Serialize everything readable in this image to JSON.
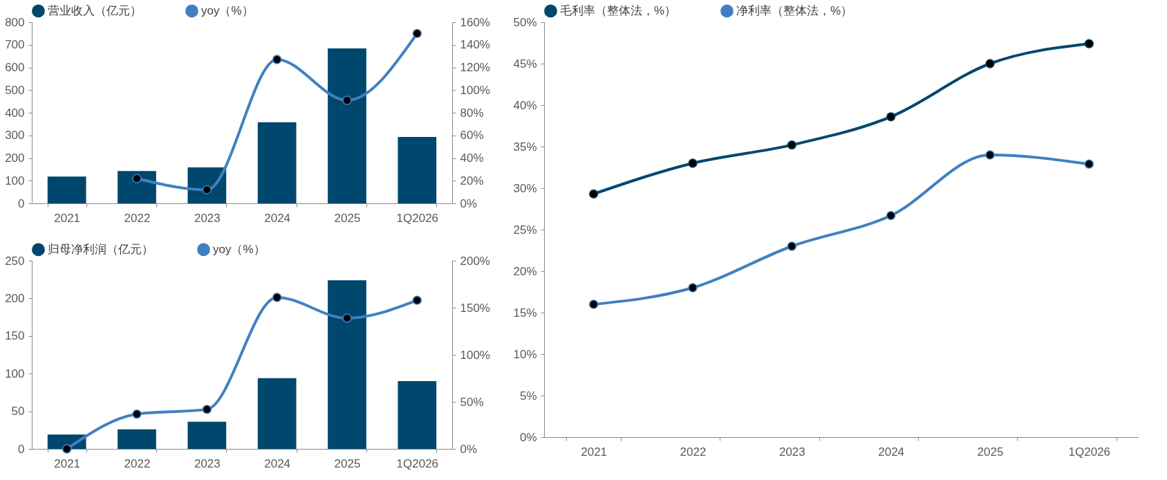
{
  "chart_data": [
    {
      "type": "bar",
      "categories": [
        "2021",
        "2022",
        "2023",
        "2024",
        "2025",
        "1Q2026"
      ],
      "series": [
        {
          "name": "营业收入（亿元）",
          "color": "#00476e",
          "values": [
            118,
            143,
            159,
            358,
            684,
            293
          ]
        },
        {
          "name": "yoy（%）",
          "type": "line",
          "axis": "y2",
          "color": "#4080c0",
          "values": [
            null,
            22,
            12,
            127,
            91,
            150
          ]
        }
      ],
      "ylim": [
        0,
        800
      ],
      "yticks": [
        0,
        100,
        200,
        300,
        400,
        500,
        600,
        700,
        800
      ],
      "y2lim": [
        0,
        160
      ],
      "y2ticks": [
        {
          "value": 0,
          "label": "0%"
        },
        {
          "value": 20,
          "label": "20%"
        },
        {
          "value": 40,
          "label": "40%"
        },
        {
          "value": 60,
          "label": "60%"
        },
        {
          "value": 80,
          "label": "80%"
        },
        {
          "value": 100,
          "label": "100%"
        },
        {
          "value": 120,
          "label": "120%"
        },
        {
          "value": 140,
          "label": "140%"
        },
        {
          "value": 160,
          "label": "160%"
        }
      ],
      "legend": "top",
      "grid": false,
      "marker": "circle",
      "line_style": "solid"
    },
    {
      "type": "bar",
      "categories": [
        "2021",
        "2022",
        "2023",
        "2024",
        "2025",
        "1Q2026"
      ],
      "series": [
        {
          "name": "归母净利润（亿元）",
          "color": "#00476e",
          "values": [
            19,
            26,
            36,
            94,
            224,
            90
          ]
        },
        {
          "name": "yoy（%）",
          "type": "line",
          "axis": "y2",
          "color": "#4080c0",
          "values": [
            0,
            37,
            42,
            161,
            139,
            158
          ]
        }
      ],
      "ylim": [
        0,
        250
      ],
      "yticks": [
        0,
        50,
        100,
        150,
        200,
        250
      ],
      "y2lim": [
        0,
        200
      ],
      "y2ticks": [
        {
          "value": 0,
          "label": "0%"
        },
        {
          "value": 50,
          "label": "50%"
        },
        {
          "value": 100,
          "label": "100%"
        },
        {
          "value": 150,
          "label": "150%"
        },
        {
          "value": 200,
          "label": "200%"
        }
      ],
      "legend": "top",
      "grid": false,
      "marker": "circle",
      "line_style": "solid"
    },
    {
      "type": "line",
      "categories": [
        "2021",
        "2022",
        "2023",
        "2024",
        "2025",
        "1Q2026"
      ],
      "series": [
        {
          "name": "毛利率（整体法，%）",
          "color": "#00476e",
          "values": [
            29.3,
            33.0,
            35.2,
            38.6,
            45.0,
            47.4
          ]
        },
        {
          "name": "净利率（整体法，%）",
          "color": "#4080c0",
          "values": [
            16.0,
            18.0,
            23.0,
            26.7,
            34.0,
            32.9
          ]
        }
      ],
      "ylim": [
        0,
        50
      ],
      "yticks": [
        {
          "value": 0,
          "label": "0%"
        },
        {
          "value": 5,
          "label": "5%"
        },
        {
          "value": 10,
          "label": "10%"
        },
        {
          "value": 15,
          "label": "15%"
        },
        {
          "value": 20,
          "label": "20%"
        },
        {
          "value": 25,
          "label": "25%"
        },
        {
          "value": 30,
          "label": "30%"
        },
        {
          "value": 35,
          "label": "35%"
        },
        {
          "value": 40,
          "label": "40%"
        },
        {
          "value": 45,
          "label": "45%"
        },
        {
          "value": 50,
          "label": "50%"
        }
      ],
      "legend": "top",
      "grid": false,
      "marker": "circle",
      "line_style": "solid"
    }
  ]
}
